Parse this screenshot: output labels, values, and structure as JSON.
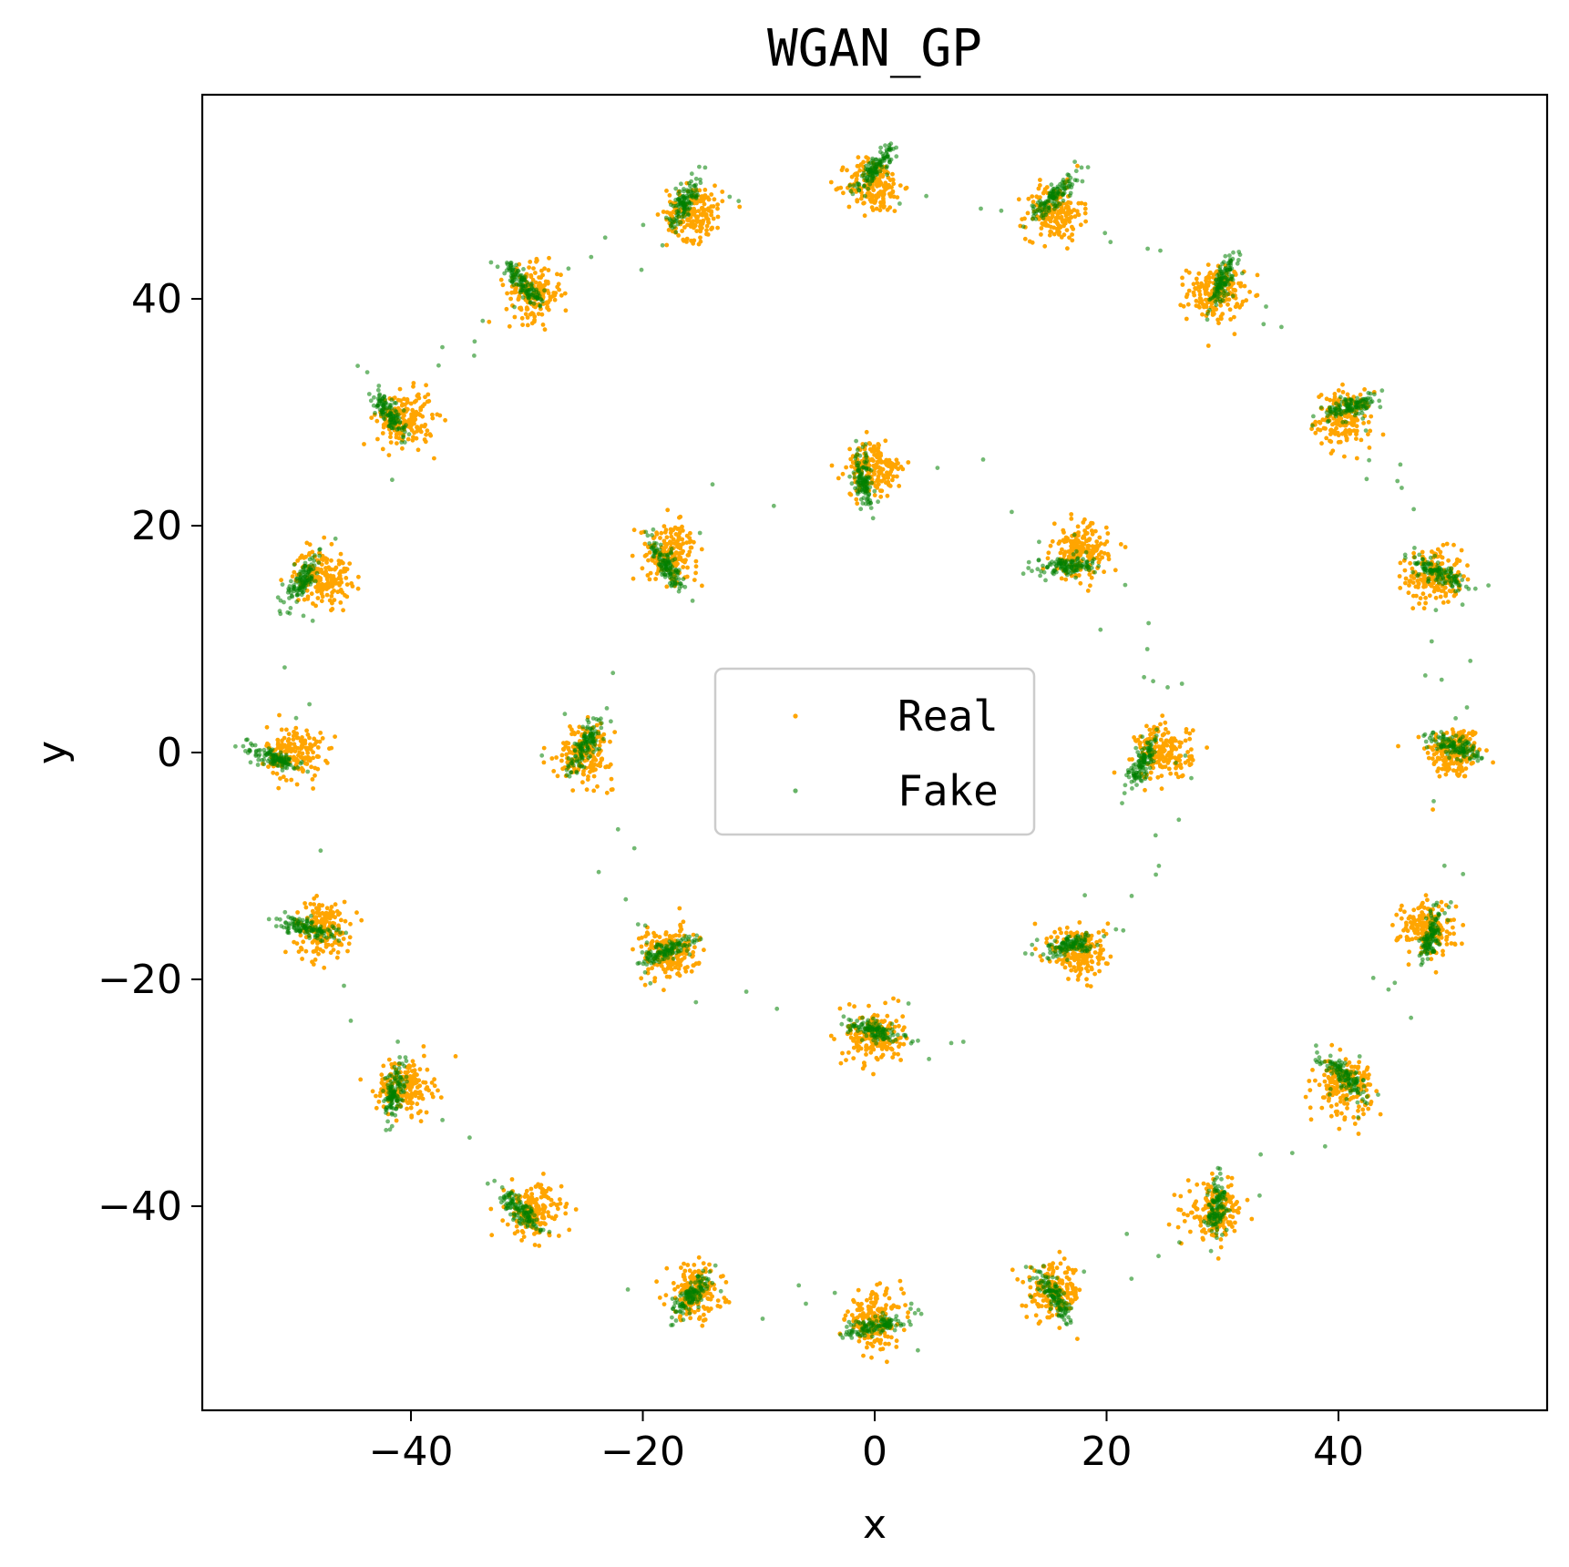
{
  "chart_data": {
    "type": "scatter",
    "title": "WGAN_GP",
    "xlabel": "x",
    "ylabel": "y",
    "xlim": [
      -58,
      58
    ],
    "ylim": [
      -58,
      58
    ],
    "xticks": [
      -40,
      -20,
      0,
      20,
      40
    ],
    "yticks": [
      -40,
      -20,
      0,
      20,
      40
    ],
    "xtick_labels": [
      "−40",
      "−20",
      "0",
      "20",
      "40"
    ],
    "ytick_labels": [
      "−40",
      "−20",
      "0",
      "20",
      "40"
    ],
    "grid": false,
    "legend": {
      "location": "center",
      "entries": [
        "Real",
        "Fake"
      ]
    },
    "series": [
      {
        "name": "Real",
        "color": "#FFA500",
        "cluster_centers": [
          [
            50,
            0
          ],
          [
            48.3,
            15.5
          ],
          [
            40.5,
            29.4
          ],
          [
            29.4,
            40.5
          ],
          [
            15.5,
            47.6
          ],
          [
            0,
            50
          ],
          [
            -15.5,
            47.6
          ],
          [
            -29.4,
            40.5
          ],
          [
            -40.5,
            29.4
          ],
          [
            -47.6,
            15.5
          ],
          [
            -50,
            0
          ],
          [
            -47.6,
            -15.5
          ],
          [
            -40.5,
            -29.4
          ],
          [
            -29.4,
            -40.5
          ],
          [
            -15.5,
            -47.6
          ],
          [
            0,
            -50
          ],
          [
            15.5,
            -47.6
          ],
          [
            29.4,
            -40.5
          ],
          [
            40.5,
            -29.4
          ],
          [
            47.6,
            -15.5
          ],
          [
            25,
            0
          ],
          [
            17.7,
            17.7
          ],
          [
            0,
            25
          ],
          [
            -17.7,
            17.7
          ],
          [
            -25,
            0
          ],
          [
            -17.7,
            -17.7
          ],
          [
            0,
            -25
          ],
          [
            17.7,
            -17.7
          ]
        ],
        "cluster_spread": 1.2,
        "points_per_cluster": 180
      },
      {
        "name": "Fake",
        "color": "#008000",
        "cluster_centers": [
          [
            50,
            0.5
          ],
          [
            48.5,
            16
          ],
          [
            41,
            30.5
          ],
          [
            30,
            41.5
          ],
          [
            15.5,
            49
          ],
          [
            0,
            51.5
          ],
          [
            -16.5,
            48.5
          ],
          [
            -30.5,
            41.5
          ],
          [
            -42,
            30
          ],
          [
            -49.5,
            15
          ],
          [
            -52,
            -0.5
          ],
          [
            -49,
            -15.5
          ],
          [
            -41.5,
            -30
          ],
          [
            -30.5,
            -40.5
          ],
          [
            -16,
            -48
          ],
          [
            0,
            -50.5
          ],
          [
            15.5,
            -48
          ],
          [
            29.5,
            -40
          ],
          [
            40.5,
            -28.5
          ],
          [
            48,
            -16
          ],
          [
            23,
            -1
          ],
          [
            16.5,
            16.5
          ],
          [
            -1,
            24
          ],
          [
            -18,
            16.5
          ],
          [
            -25,
            0.5
          ],
          [
            -18,
            -17.5
          ],
          [
            0,
            -24.5
          ],
          [
            17,
            -17
          ]
        ],
        "cluster_spread": 0.8,
        "points_per_cluster": 120,
        "stray_points": 140
      }
    ]
  }
}
